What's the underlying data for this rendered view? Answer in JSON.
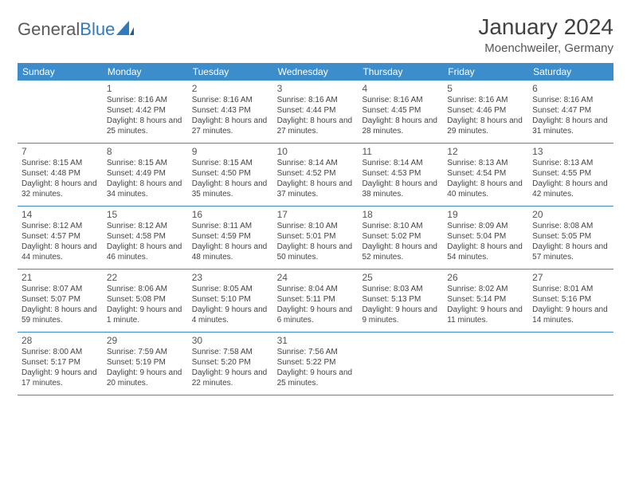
{
  "logo": {
    "text1": "General",
    "text2": "Blue"
  },
  "header": {
    "month_title": "January 2024",
    "location": "Moenchweiler, Germany"
  },
  "colors": {
    "header_bg": "#3c8dcc",
    "header_text": "#ffffff",
    "logo_gray": "#5a5a5a",
    "logo_blue": "#2f7bbf",
    "text": "#444444",
    "rule": "#3c8dcc",
    "background": "#ffffff"
  },
  "dow": [
    "Sunday",
    "Monday",
    "Tuesday",
    "Wednesday",
    "Thursday",
    "Friday",
    "Saturday"
  ],
  "weeks": [
    [
      null,
      {
        "n": "1",
        "sr": "Sunrise: 8:16 AM",
        "ss": "Sunset: 4:42 PM",
        "dl": "Daylight: 8 hours and 25 minutes."
      },
      {
        "n": "2",
        "sr": "Sunrise: 8:16 AM",
        "ss": "Sunset: 4:43 PM",
        "dl": "Daylight: 8 hours and 27 minutes."
      },
      {
        "n": "3",
        "sr": "Sunrise: 8:16 AM",
        "ss": "Sunset: 4:44 PM",
        "dl": "Daylight: 8 hours and 27 minutes."
      },
      {
        "n": "4",
        "sr": "Sunrise: 8:16 AM",
        "ss": "Sunset: 4:45 PM",
        "dl": "Daylight: 8 hours and 28 minutes."
      },
      {
        "n": "5",
        "sr": "Sunrise: 8:16 AM",
        "ss": "Sunset: 4:46 PM",
        "dl": "Daylight: 8 hours and 29 minutes."
      },
      {
        "n": "6",
        "sr": "Sunrise: 8:16 AM",
        "ss": "Sunset: 4:47 PM",
        "dl": "Daylight: 8 hours and 31 minutes."
      }
    ],
    [
      {
        "n": "7",
        "sr": "Sunrise: 8:15 AM",
        "ss": "Sunset: 4:48 PM",
        "dl": "Daylight: 8 hours and 32 minutes."
      },
      {
        "n": "8",
        "sr": "Sunrise: 8:15 AM",
        "ss": "Sunset: 4:49 PM",
        "dl": "Daylight: 8 hours and 34 minutes."
      },
      {
        "n": "9",
        "sr": "Sunrise: 8:15 AM",
        "ss": "Sunset: 4:50 PM",
        "dl": "Daylight: 8 hours and 35 minutes."
      },
      {
        "n": "10",
        "sr": "Sunrise: 8:14 AM",
        "ss": "Sunset: 4:52 PM",
        "dl": "Daylight: 8 hours and 37 minutes."
      },
      {
        "n": "11",
        "sr": "Sunrise: 8:14 AM",
        "ss": "Sunset: 4:53 PM",
        "dl": "Daylight: 8 hours and 38 minutes."
      },
      {
        "n": "12",
        "sr": "Sunrise: 8:13 AM",
        "ss": "Sunset: 4:54 PM",
        "dl": "Daylight: 8 hours and 40 minutes."
      },
      {
        "n": "13",
        "sr": "Sunrise: 8:13 AM",
        "ss": "Sunset: 4:55 PM",
        "dl": "Daylight: 8 hours and 42 minutes."
      }
    ],
    [
      {
        "n": "14",
        "sr": "Sunrise: 8:12 AM",
        "ss": "Sunset: 4:57 PM",
        "dl": "Daylight: 8 hours and 44 minutes."
      },
      {
        "n": "15",
        "sr": "Sunrise: 8:12 AM",
        "ss": "Sunset: 4:58 PM",
        "dl": "Daylight: 8 hours and 46 minutes."
      },
      {
        "n": "16",
        "sr": "Sunrise: 8:11 AM",
        "ss": "Sunset: 4:59 PM",
        "dl": "Daylight: 8 hours and 48 minutes."
      },
      {
        "n": "17",
        "sr": "Sunrise: 8:10 AM",
        "ss": "Sunset: 5:01 PM",
        "dl": "Daylight: 8 hours and 50 minutes."
      },
      {
        "n": "18",
        "sr": "Sunrise: 8:10 AM",
        "ss": "Sunset: 5:02 PM",
        "dl": "Daylight: 8 hours and 52 minutes."
      },
      {
        "n": "19",
        "sr": "Sunrise: 8:09 AM",
        "ss": "Sunset: 5:04 PM",
        "dl": "Daylight: 8 hours and 54 minutes."
      },
      {
        "n": "20",
        "sr": "Sunrise: 8:08 AM",
        "ss": "Sunset: 5:05 PM",
        "dl": "Daylight: 8 hours and 57 minutes."
      }
    ],
    [
      {
        "n": "21",
        "sr": "Sunrise: 8:07 AM",
        "ss": "Sunset: 5:07 PM",
        "dl": "Daylight: 8 hours and 59 minutes."
      },
      {
        "n": "22",
        "sr": "Sunrise: 8:06 AM",
        "ss": "Sunset: 5:08 PM",
        "dl": "Daylight: 9 hours and 1 minute."
      },
      {
        "n": "23",
        "sr": "Sunrise: 8:05 AM",
        "ss": "Sunset: 5:10 PM",
        "dl": "Daylight: 9 hours and 4 minutes."
      },
      {
        "n": "24",
        "sr": "Sunrise: 8:04 AM",
        "ss": "Sunset: 5:11 PM",
        "dl": "Daylight: 9 hours and 6 minutes."
      },
      {
        "n": "25",
        "sr": "Sunrise: 8:03 AM",
        "ss": "Sunset: 5:13 PM",
        "dl": "Daylight: 9 hours and 9 minutes."
      },
      {
        "n": "26",
        "sr": "Sunrise: 8:02 AM",
        "ss": "Sunset: 5:14 PM",
        "dl": "Daylight: 9 hours and 11 minutes."
      },
      {
        "n": "27",
        "sr": "Sunrise: 8:01 AM",
        "ss": "Sunset: 5:16 PM",
        "dl": "Daylight: 9 hours and 14 minutes."
      }
    ],
    [
      {
        "n": "28",
        "sr": "Sunrise: 8:00 AM",
        "ss": "Sunset: 5:17 PM",
        "dl": "Daylight: 9 hours and 17 minutes."
      },
      {
        "n": "29",
        "sr": "Sunrise: 7:59 AM",
        "ss": "Sunset: 5:19 PM",
        "dl": "Daylight: 9 hours and 20 minutes."
      },
      {
        "n": "30",
        "sr": "Sunrise: 7:58 AM",
        "ss": "Sunset: 5:20 PM",
        "dl": "Daylight: 9 hours and 22 minutes."
      },
      {
        "n": "31",
        "sr": "Sunrise: 7:56 AM",
        "ss": "Sunset: 5:22 PM",
        "dl": "Daylight: 9 hours and 25 minutes."
      },
      null,
      null,
      null
    ]
  ]
}
